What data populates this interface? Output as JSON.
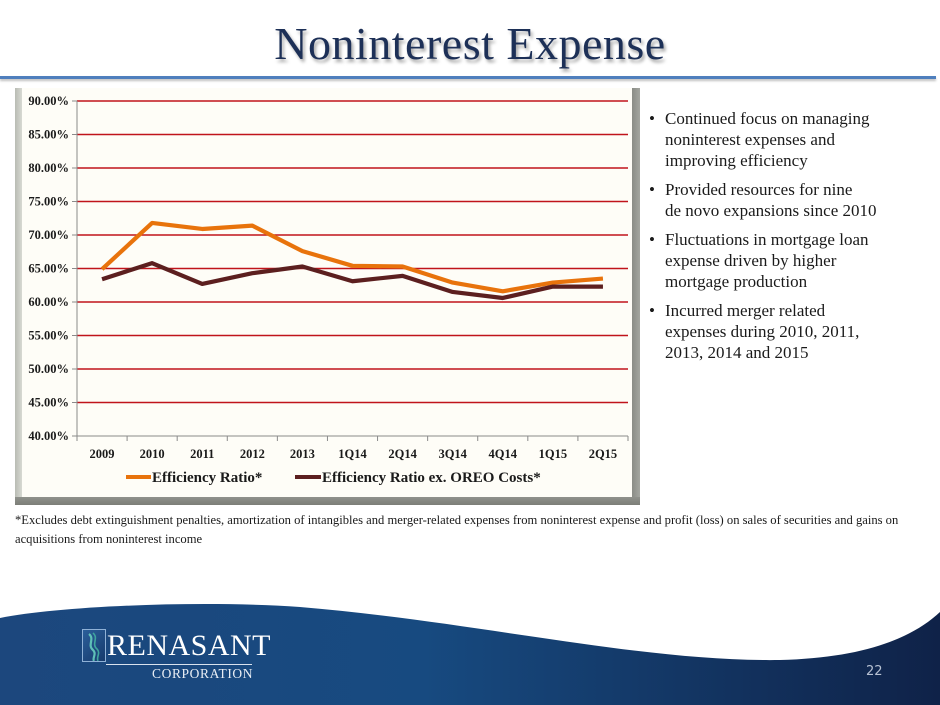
{
  "slide": {
    "title": "Noninterest Expense",
    "page_number": "22"
  },
  "chart_data": {
    "type": "line",
    "title": "",
    "xlabel": "",
    "ylabel": "",
    "categories": [
      "2009",
      "2010",
      "2011",
      "2012",
      "2013",
      "1Q14",
      "2Q14",
      "3Q14",
      "4Q14",
      "1Q15",
      "2Q15"
    ],
    "y_ticks": [
      "90.00%",
      "85.00%",
      "80.00%",
      "75.00%",
      "70.00%",
      "65.00%",
      "60.00%",
      "55.00%",
      "50.00%",
      "45.00%",
      "40.00%"
    ],
    "y_tick_values": [
      90,
      85,
      80,
      75,
      70,
      65,
      60,
      55,
      50,
      45,
      40
    ],
    "ylim": [
      40,
      90
    ],
    "grid": true,
    "legend_position": "bottom",
    "series": [
      {
        "name": "Efficiency Ratio*",
        "color": "#e8730c",
        "values": [
          64.9,
          71.8,
          70.9,
          71.4,
          67.6,
          65.4,
          65.3,
          62.9,
          61.6,
          62.9,
          63.5
        ]
      },
      {
        "name": "Efficiency Ratio ex. OREO Costs*",
        "color": "#5c1f1f",
        "values": [
          63.4,
          65.8,
          62.7,
          64.3,
          65.3,
          63.1,
          63.9,
          61.5,
          60.6,
          62.3,
          62.3
        ]
      }
    ]
  },
  "bullets": [
    "Continued focus on managing noninterest expenses and improving efficiency",
    "Provided resources for nine de novo expansions since 2010",
    "Fluctuations in mortgage loan expense driven by higher mortgage production",
    "Incurred merger related expenses during 2010, 2011, 2013, 2014 and 2015"
  ],
  "bullet_lines": [
    [
      "Continued focus on managing",
      "noninterest expenses and",
      "improving efficiency"
    ],
    [
      "Provided resources for nine",
      "de novo expansions since 2010"
    ],
    [
      "Fluctuations in mortgage loan",
      "expense driven by higher",
      "mortgage production"
    ],
    [
      "Incurred merger related",
      "expenses during 2010, 2011,",
      "2013, 2014 and 2015"
    ]
  ],
  "bullet_glyph": "•",
  "footnote": "*Excludes debt extinguishment penalties, amortization of intangibles and merger-related expenses from noninterest expense and profit (loss) on sales of securities and gains on acquisitions from noninterest income",
  "logo": {
    "name": "RENASANT",
    "sub": "CORPORATION"
  },
  "colors": {
    "title": "#1d3057",
    "gridline": "#c0141b",
    "footer_navy": "#15396b",
    "panel_bg": "#fefdf7"
  }
}
